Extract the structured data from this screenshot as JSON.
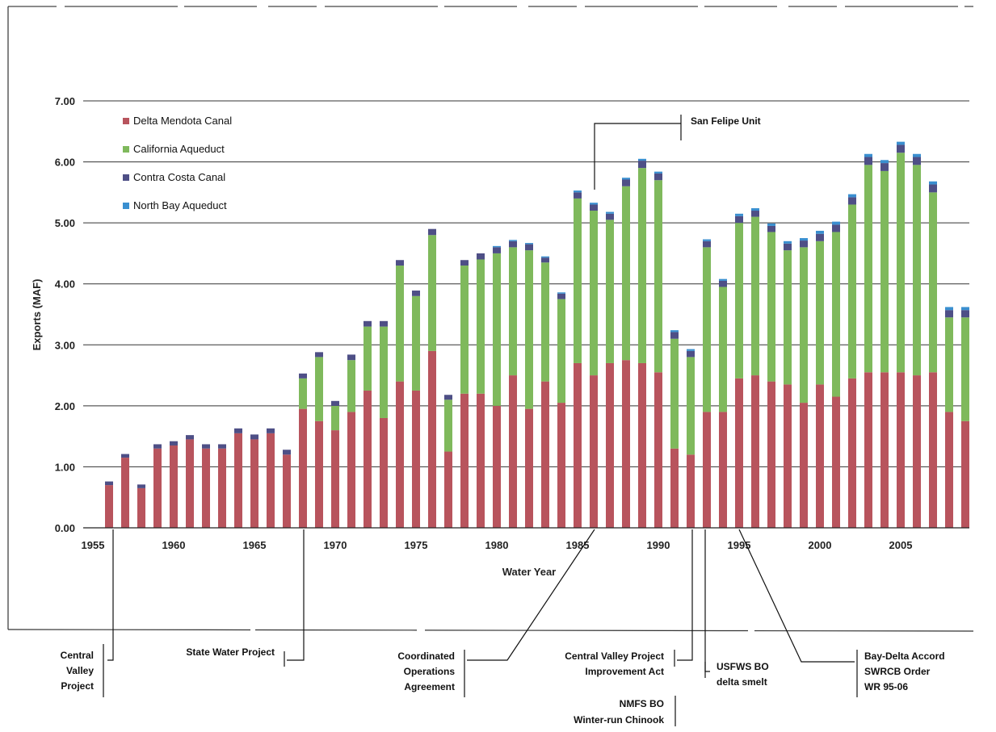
{
  "chart_data": {
    "type": "bar",
    "stacked": true,
    "title": "",
    "xlabel": "Water Year",
    "ylabel": "Exports (MAF)",
    "ylim": [
      0,
      7
    ],
    "y_ticks": [
      "0.00",
      "1.00",
      "2.00",
      "3.00",
      "4.00",
      "5.00",
      "6.00",
      "7.00"
    ],
    "x_ticks": [
      "1955",
      "1960",
      "1965",
      "1970",
      "1975",
      "1980",
      "1985",
      "1990",
      "1995",
      "2000",
      "2005"
    ],
    "grid": true,
    "legend_position": "top-left",
    "categories": [
      1956,
      1957,
      1958,
      1959,
      1960,
      1961,
      1962,
      1963,
      1964,
      1965,
      1966,
      1967,
      1968,
      1969,
      1970,
      1971,
      1972,
      1973,
      1974,
      1975,
      1976,
      1977,
      1978,
      1979,
      1980,
      1981,
      1982,
      1983,
      1984,
      1985,
      1986,
      1987,
      1988,
      1989,
      1990,
      1991,
      1992,
      1993,
      1994,
      1995,
      1996,
      1997,
      1998,
      1999,
      2000,
      2001,
      2002,
      2003,
      2004,
      2005,
      2006,
      2007,
      2008,
      2009
    ],
    "series": [
      {
        "name": "Delta Mendota Canal",
        "color": "#b8545d",
        "values": [
          0.7,
          1.15,
          0.65,
          1.3,
          1.35,
          1.45,
          1.3,
          1.3,
          1.55,
          1.45,
          1.55,
          1.2,
          1.95,
          1.75,
          1.6,
          1.9,
          2.25,
          1.8,
          2.4,
          2.25,
          2.9,
          1.25,
          2.2,
          2.2,
          2.0,
          2.5,
          1.95,
          2.4,
          2.05,
          2.7,
          2.5,
          2.7,
          2.75,
          2.7,
          2.55,
          1.3,
          1.2,
          1.9,
          1.9,
          2.45,
          2.5,
          2.4,
          2.35,
          2.05,
          2.35,
          2.15,
          2.45,
          2.55,
          2.55,
          2.55,
          2.5,
          2.55,
          1.9,
          1.75
        ]
      },
      {
        "name": "California Aqueduct",
        "color": "#7fb95c",
        "values": [
          0,
          0,
          0,
          0,
          0,
          0,
          0,
          0,
          0,
          0,
          0,
          0,
          0.5,
          1.05,
          0.4,
          0.85,
          1.05,
          1.5,
          1.9,
          1.55,
          1.9,
          0.85,
          2.1,
          2.2,
          2.5,
          2.1,
          2.6,
          1.95,
          1.7,
          2.7,
          2.7,
          2.35,
          2.85,
          3.2,
          3.15,
          1.8,
          1.6,
          2.7,
          2.05,
          2.55,
          2.6,
          2.45,
          2.2,
          2.55,
          2.35,
          2.7,
          2.85,
          3.4,
          3.3,
          3.6,
          3.45,
          2.95,
          1.55,
          1.7
        ]
      },
      {
        "name": "Contra Costa Canal",
        "color": "#4e4f86",
        "values": [
          0.06,
          0.06,
          0.06,
          0.07,
          0.07,
          0.07,
          0.07,
          0.07,
          0.08,
          0.08,
          0.08,
          0.08,
          0.08,
          0.08,
          0.08,
          0.09,
          0.09,
          0.09,
          0.09,
          0.09,
          0.1,
          0.08,
          0.09,
          0.1,
          0.1,
          0.1,
          0.1,
          0.08,
          0.09,
          0.1,
          0.1,
          0.1,
          0.11,
          0.12,
          0.11,
          0.11,
          0.1,
          0.1,
          0.1,
          0.11,
          0.1,
          0.1,
          0.11,
          0.11,
          0.12,
          0.12,
          0.12,
          0.13,
          0.13,
          0.13,
          0.13,
          0.13,
          0.12,
          0.12
        ]
      },
      {
        "name": "North Bay Aqueduct",
        "color": "#3a8fd0",
        "values": [
          0,
          0,
          0,
          0,
          0,
          0,
          0,
          0,
          0,
          0,
          0,
          0,
          0,
          0,
          0,
          0,
          0,
          0,
          0,
          0,
          0,
          0,
          0,
          0,
          0.02,
          0.02,
          0.02,
          0.02,
          0.02,
          0.03,
          0.03,
          0.03,
          0.03,
          0.03,
          0.03,
          0.03,
          0.03,
          0.03,
          0.03,
          0.04,
          0.04,
          0.04,
          0.04,
          0.04,
          0.05,
          0.05,
          0.05,
          0.05,
          0.05,
          0.05,
          0.05,
          0.05,
          0.05,
          0.05
        ]
      }
    ],
    "annotations": [
      {
        "id": "cvp",
        "lines": [
          "Central",
          "Valley",
          "Project"
        ],
        "year": 1956
      },
      {
        "id": "swp",
        "lines": [
          "State Water Project"
        ],
        "year": 1968
      },
      {
        "id": "coa",
        "lines": [
          "Coordinated",
          "Operations",
          "Agreement"
        ],
        "year": 1986
      },
      {
        "id": "san-felipe",
        "lines": [
          "San Felipe Unit"
        ],
        "year": 1986
      },
      {
        "id": "cvpia",
        "lines": [
          "Central Valley Project",
          "Improvement Act"
        ],
        "year": 1992
      },
      {
        "id": "nmfs",
        "lines": [
          "NMFS BO",
          "Winter-run Chinook"
        ],
        "year": 1992
      },
      {
        "id": "usfws",
        "lines": [
          "USFWS BO",
          "delta smelt"
        ],
        "year": 1993
      },
      {
        "id": "bay-delta",
        "lines": [
          "Bay-Delta Accord",
          "SWRCB Order",
          "WR 95-06"
        ],
        "year": 1995
      }
    ]
  }
}
